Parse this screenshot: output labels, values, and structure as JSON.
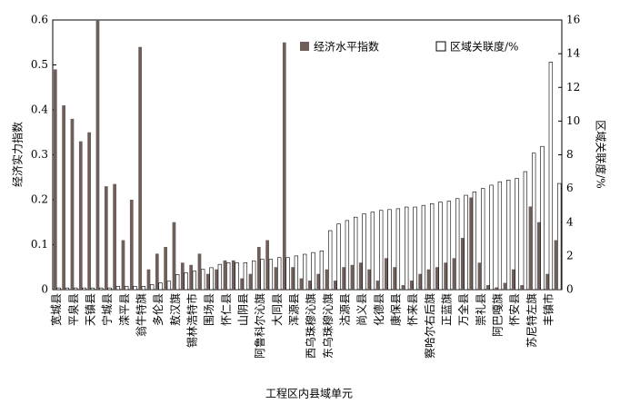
{
  "chart_data": {
    "type": "bar",
    "xlabel": "工程区内县域单元",
    "ylabel": "经济实力指数",
    "y2label": "区域关联度/%",
    "categories": [
      "宽城县",
      null,
      "平泉县",
      null,
      "天镇县",
      null,
      "宁城县",
      null,
      "滦平县",
      null,
      "翁牛特旗",
      null,
      "多伦县",
      null,
      "敖汉旗",
      null,
      "锡林浩特市",
      null,
      "围场县",
      null,
      "怀仁县",
      null,
      "山阴县",
      null,
      "阿鲁科尔沁旗",
      null,
      "大同县",
      null,
      "浑源县",
      null,
      "西乌珠穆沁旗",
      null,
      "东乌珠穆沁旗",
      null,
      "沽源县",
      null,
      "尚义县",
      null,
      "化德县",
      null,
      "康保县",
      null,
      "怀来县",
      null,
      "察哈尔右后旗",
      null,
      "正蓝旗",
      null,
      "万全县",
      null,
      "崇礼县",
      null,
      "阿巴嘎旗",
      null,
      "怀安县",
      null,
      "苏尼特左旗",
      null,
      "丰镇市",
      null
    ],
    "series": [
      {
        "name": "经济水平指数",
        "color": "#6e5f5a",
        "axis": "y",
        "values": [
          0.49,
          0.41,
          0.38,
          0.33,
          0.35,
          0.6,
          0.23,
          0.235,
          0.11,
          0.2,
          0.54,
          0.045,
          0.08,
          0.095,
          0.15,
          0.06,
          0.055,
          0.08,
          0.035,
          0.045,
          0.065,
          0.065,
          0.025,
          0.035,
          0.095,
          0.11,
          0.05,
          0.55,
          0.05,
          0.025,
          0.02,
          0.035,
          0.045,
          0.02,
          0.05,
          0.055,
          0.06,
          0.045,
          0.02,
          0.07,
          0.05,
          0.01,
          0.02,
          0.035,
          0.045,
          0.05,
          0.06,
          0.07,
          0.115,
          0.205,
          0.06,
          0.01,
          0.005,
          0.015,
          0.045,
          0.01,
          0.185,
          0.15,
          0.035,
          0.11
        ]
      },
      {
        "name": "区域关联度/%",
        "color": "#ffffff",
        "axis": "y2",
        "values": [
          0.1,
          0.1,
          0.1,
          0.1,
          0.1,
          0.1,
          0.1,
          0.2,
          0.2,
          0.2,
          0.2,
          0.3,
          0.4,
          0.5,
          0.9,
          1.0,
          1.1,
          1.2,
          1.3,
          1.5,
          1.6,
          1.6,
          1.6,
          1.7,
          1.8,
          1.8,
          1.9,
          1.9,
          2.0,
          2.1,
          2.2,
          2.3,
          3.5,
          3.9,
          4.1,
          4.3,
          4.5,
          4.6,
          4.7,
          4.75,
          4.8,
          4.9,
          4.9,
          5.0,
          5.1,
          5.2,
          5.25,
          5.4,
          5.6,
          5.8,
          6.0,
          6.2,
          6.4,
          6.5,
          6.6,
          7.0,
          8.1,
          8.5,
          13.5,
          6.3
        ]
      }
    ],
    "ylim": [
      0,
      0.6
    ],
    "yticks": [
      0,
      0.1,
      0.2,
      0.3,
      0.4,
      0.5,
      0.6
    ],
    "y2lim": [
      0,
      16
    ],
    "y2ticks": [
      0,
      2,
      4,
      6,
      8,
      10,
      12,
      14,
      16
    ],
    "grid": false
  }
}
